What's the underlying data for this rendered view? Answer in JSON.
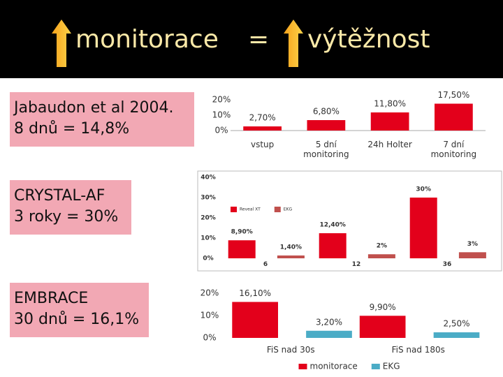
{
  "title": {
    "left": "monitorace",
    "eq": "=",
    "right": "výtěžnost"
  },
  "boxes": [
    [
      "Jabaudon et al 2004.",
      "8 dnů = 14,8%"
    ],
    [
      "CRYSTAL-AF",
      "3 roky = 30%"
    ],
    [
      "EMBRACE",
      "30 dnů = 16,1%"
    ]
  ],
  "chart_data": [
    {
      "type": "bar",
      "categories": [
        "vstup",
        "5 dní monitoring",
        "24h Holter",
        "7 dní monitoring"
      ],
      "values": [
        2.7,
        6.8,
        11.8,
        17.5
      ],
      "value_labels": [
        "2,70%",
        "6,80%",
        "11,80%",
        "17,50%"
      ],
      "color": "#e3001b",
      "ylim": [
        0,
        20
      ],
      "yticks": [
        {
          "value": 0,
          "label": "0%"
        },
        {
          "value": 10,
          "label": "10%"
        },
        {
          "value": 20,
          "label": "20%"
        }
      ]
    },
    {
      "type": "bar",
      "categories": [
        "6",
        "12",
        "36"
      ],
      "series": [
        {
          "name": "Reveal XT",
          "color": "#e3001b",
          "values": [
            8.9,
            12.4,
            30
          ],
          "value_labels": [
            "8,90%",
            "12,40%",
            "30%"
          ]
        },
        {
          "name": "EKG",
          "color": "#c0504d",
          "values": [
            1.4,
            2,
            3
          ],
          "value_labels": [
            "1,40%",
            "2%",
            "3%"
          ]
        }
      ],
      "ylim": [
        0,
        40
      ],
      "yticks": [
        {
          "value": 0,
          "label": "0%"
        },
        {
          "value": 10,
          "label": "10%"
        },
        {
          "value": 20,
          "label": "20%"
        },
        {
          "value": 30,
          "label": "30%"
        },
        {
          "value": 40,
          "label": "40%"
        }
      ],
      "legend": "top left"
    },
    {
      "type": "bar",
      "categories": [
        "FiS nad 30s",
        "FiS nad 180s"
      ],
      "series": [
        {
          "name": "monitorace",
          "color": "#e3001b",
          "values": [
            16.1,
            9.9
          ],
          "value_labels": [
            "16,10%",
            "9,90%"
          ]
        },
        {
          "name": "EKG",
          "color": "#4bacc6",
          "values": [
            3.2,
            2.5
          ],
          "value_labels": [
            "3,20%",
            "2,50%"
          ]
        }
      ],
      "ylim": [
        0,
        20
      ],
      "yticks": [
        {
          "value": 0,
          "label": "0%"
        },
        {
          "value": 10,
          "label": "10%"
        },
        {
          "value": 20,
          "label": "20%"
        }
      ],
      "legend": "bottom"
    }
  ]
}
